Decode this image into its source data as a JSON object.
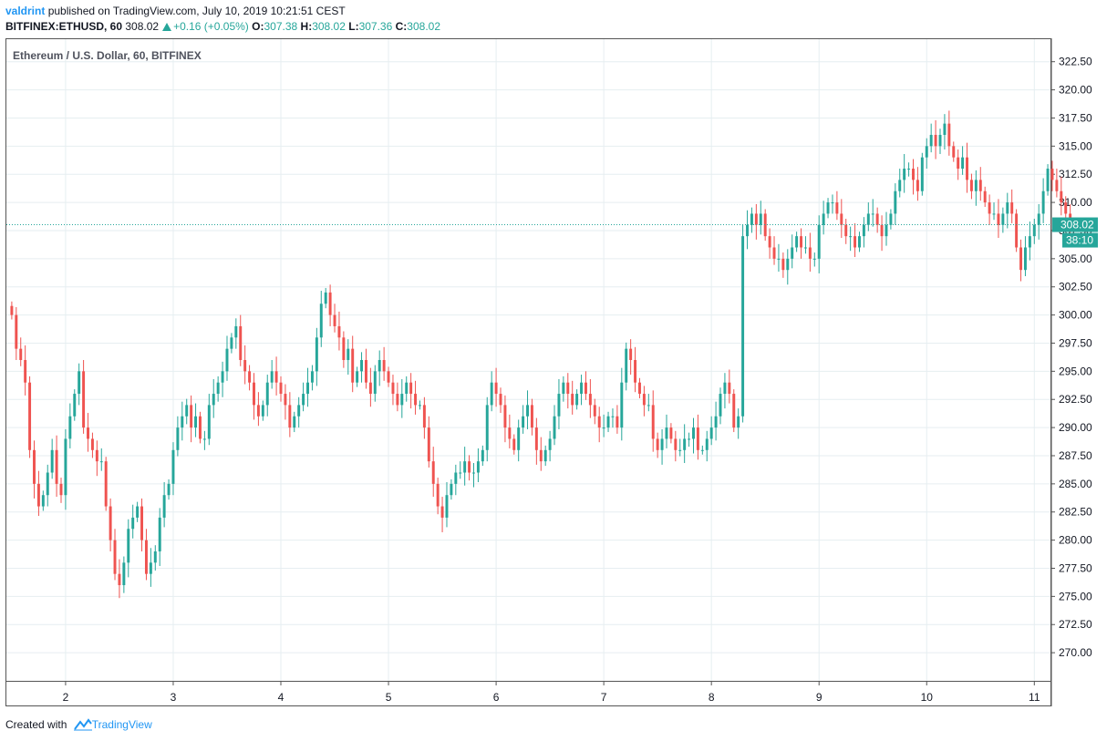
{
  "header": {
    "username": "valdrint",
    "published_text": "published on TradingView.com, July 10, 2019 10:21:51 CEST",
    "symbol": "BITFINEX:ETHUSD, 60",
    "last_price": "308.02",
    "change": "+0.16 (+0.05%)",
    "open_label": "O:",
    "open": "307.38",
    "high_label": "H:",
    "high": "308.02",
    "low_label": "L:",
    "low": "307.36",
    "close_label": "C:",
    "close": "308.02"
  },
  "footer": {
    "created_with": "Created with",
    "brand": "TradingView"
  },
  "colors": {
    "up": "#26a69a",
    "down": "#ef5350",
    "grid": "#e6eef1",
    "price_line": "#26a69a"
  },
  "chart_data": {
    "type": "candlestick",
    "title": "Ethereum / U.S. Dollar, 60, BITFINEX",
    "ylim": [
      267.5,
      324.5
    ],
    "xlim": [
      1.45,
      11.15
    ],
    "y_ticks": [
      "322.50",
      "320.00",
      "317.50",
      "315.00",
      "312.50",
      "310.00",
      "307.50",
      "305.00",
      "302.50",
      "300.00",
      "297.50",
      "295.00",
      "292.50",
      "290.00",
      "287.50",
      "285.00",
      "282.50",
      "280.00",
      "277.50",
      "275.00",
      "272.50",
      "270.00"
    ],
    "x_ticks": [
      "2",
      "3",
      "4",
      "5",
      "6",
      "7",
      "8",
      "9",
      "10",
      "11"
    ],
    "current_price": "308.02",
    "countdown": "38:10",
    "grid": true,
    "series": [
      {
        "x_start": 1.5,
        "x_step": 0.0416667,
        "closes": [
          300,
          297,
          296,
          294,
          288,
          285,
          283,
          284,
          286,
          288,
          285,
          284,
          289,
          291,
          293,
          295,
          290,
          289,
          288,
          287,
          287,
          283,
          280,
          277,
          276,
          278,
          281,
          282,
          283,
          280,
          277,
          278,
          279,
          282,
          284,
          285,
          288,
          290,
          291,
          292,
          290,
          291,
          289,
          289,
          292,
          293,
          294,
          295,
          297,
          298,
          299,
          296,
          295,
          294,
          292,
          291,
          292,
          294,
          295,
          294,
          293,
          292,
          290,
          291,
          292,
          293,
          294,
          295,
          298,
          301,
          302,
          300,
          299,
          298,
          296,
          297,
          294,
          295,
          296,
          294,
          293,
          295,
          296,
          295,
          294,
          293,
          292,
          293,
          294,
          293,
          292,
          292,
          290,
          287,
          285,
          283,
          282,
          284,
          285,
          286,
          286,
          287,
          286,
          286,
          287,
          288,
          292,
          294,
          293,
          292,
          290,
          289,
          288,
          290,
          291,
          292,
          290,
          288,
          287,
          288,
          289,
          291,
          293,
          294,
          293,
          292,
          293,
          294,
          293,
          292,
          291,
          290,
          290,
          291,
          291,
          290,
          294,
          297,
          296,
          294,
          293,
          292,
          292,
          289,
          288,
          289,
          290,
          289,
          288,
          288,
          289,
          289,
          290,
          288,
          288,
          289,
          290,
          291,
          293,
          294,
          293,
          290,
          291,
          307,
          308,
          309,
          308,
          309,
          307,
          306,
          305,
          305,
          304,
          305,
          306,
          307,
          306,
          306,
          305,
          305,
          308,
          309,
          310,
          310,
          309,
          308,
          307,
          307,
          306,
          307,
          308,
          309,
          309,
          308,
          307,
          308,
          309,
          311,
          312,
          313,
          313,
          312,
          311,
          314,
          315,
          316,
          315,
          316,
          317,
          315,
          314,
          313,
          314,
          312,
          311,
          312,
          311,
          310,
          309,
          309,
          308,
          309,
          310,
          309,
          306,
          304,
          306,
          307,
          308,
          309,
          311,
          313,
          312,
          311,
          310,
          309,
          308
        ]
      }
    ]
  }
}
